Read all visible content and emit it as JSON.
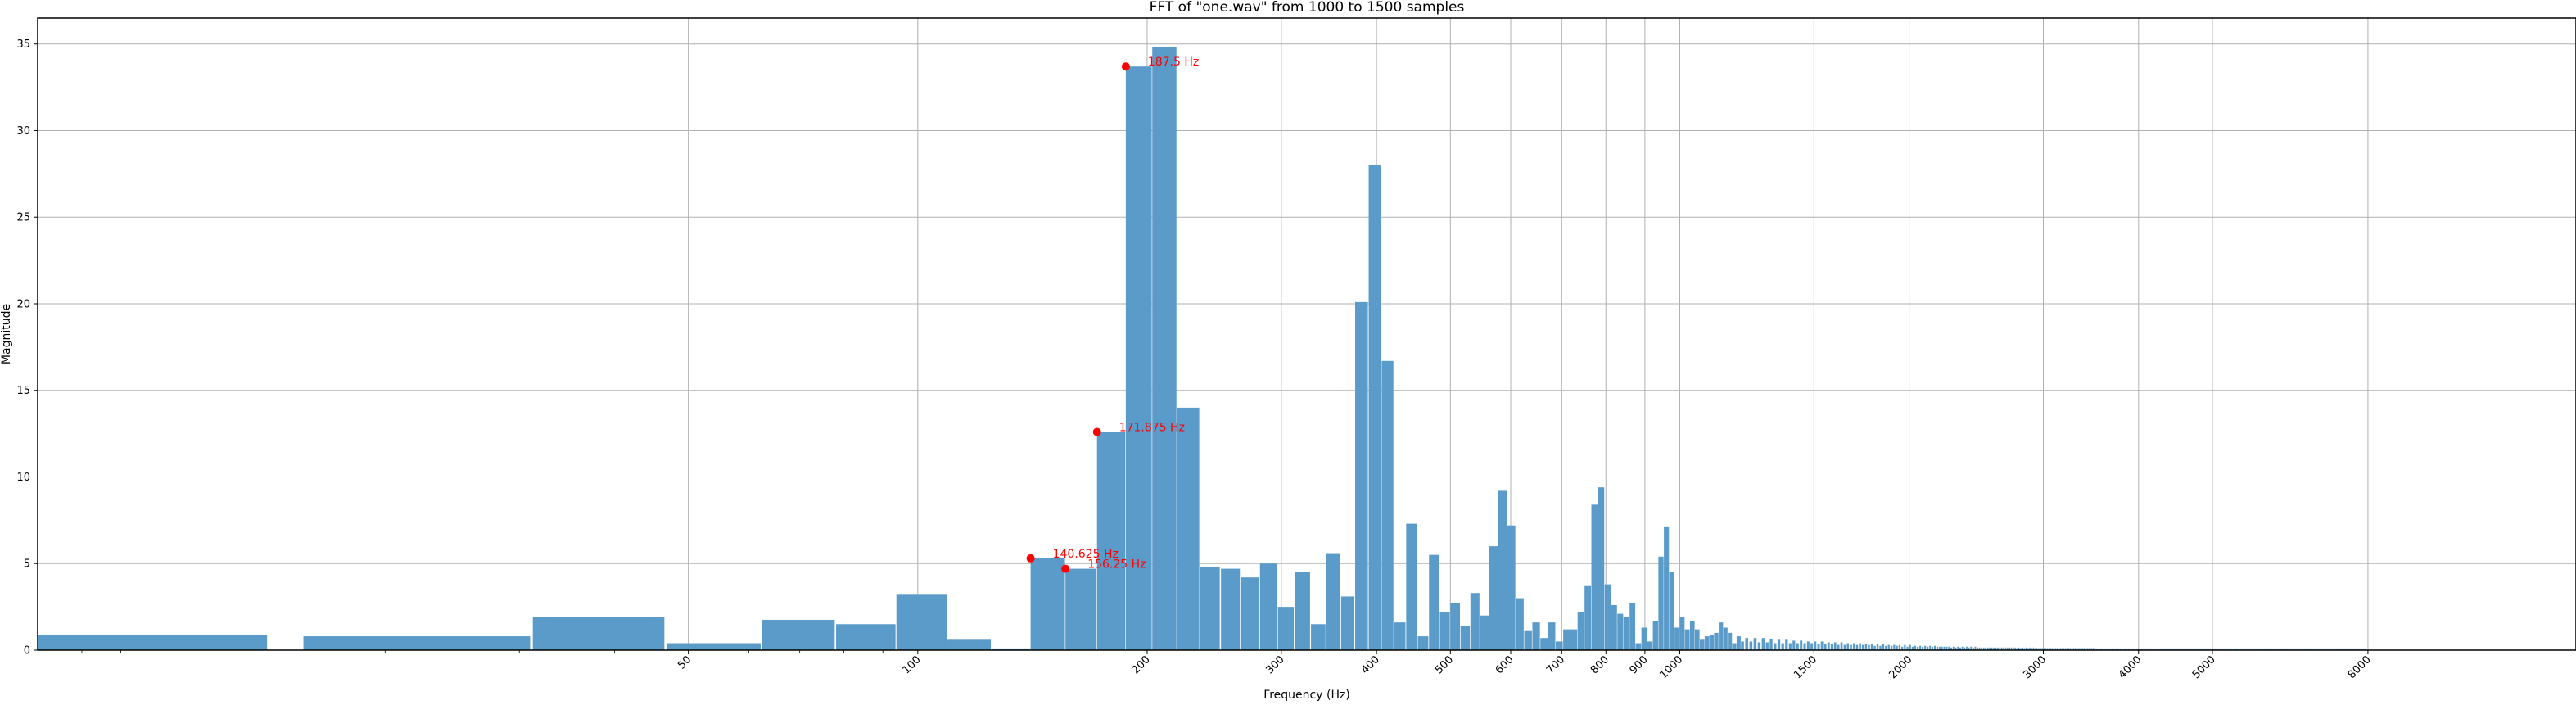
{
  "chart_data": {
    "type": "bar",
    "title": "FFT of \"one.wav\" from 1000 to 1500 samples",
    "xlabel": "Frequency (Hz)",
    "ylabel": "Magnitude",
    "x_scale": "log",
    "xlim": [
      7.0,
      15000
    ],
    "ylim": [
      0,
      36.5
    ],
    "grid": true,
    "bar_color": "#5b9bc9",
    "marker_color": "#ff0000",
    "y_ticks": [
      0,
      5,
      10,
      15,
      20,
      25,
      30,
      35
    ],
    "x_ticks": [
      50,
      100,
      200,
      300,
      400,
      500,
      600,
      700,
      800,
      900,
      1000,
      1500,
      2000,
      3000,
      4000,
      5000,
      8000
    ],
    "bar_width_hz": 15.625,
    "bars_manual": [
      {
        "x0": 7.0,
        "x1": 14.0,
        "y": 0.9
      },
      {
        "x0": 15.625,
        "x1": 31.0,
        "y": 0.8
      },
      {
        "x0": 31.25,
        "x1": 46.5,
        "y": 1.9
      },
      {
        "x0": 46.875,
        "x1": 62.2,
        "y": 0.4
      },
      {
        "x0": 62.5,
        "x1": 77.8,
        "y": 1.75
      },
      {
        "x0": 78.125,
        "x1": 93.5,
        "y": 1.5
      },
      {
        "x0": 93.75,
        "x1": 109.1,
        "y": 3.2
      },
      {
        "x0": 109.375,
        "x1": 124.7,
        "y": 0.6
      },
      {
        "x0": 125.0,
        "x1": 140.3,
        "y": 0.1
      },
      {
        "x0": 140.625,
        "x1": 156.0,
        "y": 5.3
      },
      {
        "x0": 156.25,
        "x1": 171.6,
        "y": 4.7
      },
      {
        "x0": 171.875,
        "x1": 187.2,
        "y": 12.6
      },
      {
        "x0": 187.5,
        "x1": 202.8,
        "y": 33.7
      },
      {
        "x0": 203.125,
        "x1": 218.5,
        "y": 34.8
      },
      {
        "x0": 218.75,
        "x1": 234.1,
        "y": 14.0
      }
    ],
    "bars_from_234_375": [
      4.8,
      4.7,
      4.2,
      5.0,
      2.5,
      4.5,
      1.5,
      5.6,
      3.1,
      20.1,
      28.0,
      16.7,
      1.6,
      7.3,
      0.8,
      5.5,
      2.2,
      2.7,
      1.4,
      3.3,
      2.0,
      6.0,
      9.2,
      7.2,
      3.0,
      1.1,
      1.6,
      0.7,
      1.6,
      0.5,
      1.2,
      1.2,
      2.2,
      3.7,
      8.4,
      9.4,
      3.8,
      2.6,
      2.1,
      1.9,
      2.7,
      0.4,
      1.3,
      0.5,
      1.7,
      5.4,
      7.1,
      4.5,
      1.3,
      1.9,
      1.2,
      1.7,
      1.2,
      0.6,
      0.8,
      0.9,
      1.0,
      1.6,
      1.3,
      1.0,
      0.4,
      0.8,
      0.5,
      0.7,
      0.5,
      0.7,
      0.45,
      0.7,
      0.45,
      0.65,
      0.4,
      0.6,
      0.4,
      0.6,
      0.4,
      0.55,
      0.4,
      0.55,
      0.4,
      0.5,
      0.4,
      0.5,
      0.35,
      0.5,
      0.35,
      0.45,
      0.35,
      0.45,
      0.3,
      0.45,
      0.3,
      0.4,
      0.3,
      0.4,
      0.3,
      0.4,
      0.3,
      0.35,
      0.3,
      0.35,
      0.25,
      0.35,
      0.25,
      0.35,
      0.25,
      0.3,
      0.25,
      0.3,
      0.25,
      0.3,
      0.2,
      0.3,
      0.2,
      0.3,
      0.2,
      0.25,
      0.2,
      0.25,
      0.2,
      0.25,
      0.2,
      0.25,
      0.2,
      0.25,
      0.2,
      0.2,
      0.2,
      0.2,
      0.2,
      0.2,
      0.15,
      0.2,
      0.15,
      0.2,
      0.15,
      0.2,
      0.15,
      0.2,
      0.15,
      0.2,
      0.15,
      0.2,
      0.15,
      0.15,
      0.15,
      0.15,
      0.15,
      0.15,
      0.15,
      0.15,
      0.15,
      0.15,
      0.15,
      0.15,
      0.15,
      0.15,
      0.15,
      0.15,
      0.15,
      0.15,
      0.15,
      0.15,
      0.12,
      0.15,
      0.12,
      0.15,
      0.12,
      0.15,
      0.12,
      0.15,
      0.12,
      0.15,
      0.12,
      0.12,
      0.12,
      0.12,
      0.12,
      0.12,
      0.12,
      0.12,
      0.12,
      0.12,
      0.12,
      0.12,
      0.12,
      0.12,
      0.12,
      0.12,
      0.12,
      0.12,
      0.12,
      0.12,
      0.12,
      0.12,
      0.12,
      0.12,
      0.12,
      0.12,
      0.12,
      0.12,
      0.12,
      0.12,
      0.12,
      0.12,
      0.12,
      0.12,
      0.12,
      0.12,
      0.12,
      0.12,
      0.1,
      0.1,
      0.1,
      0.1,
      0.1,
      0.1,
      0.1,
      0.1,
      0.1,
      0.1,
      0.1,
      0.1,
      0.1,
      0.1,
      0.1,
      0.1,
      0.1,
      0.1,
      0.1,
      0.1,
      0.1,
      0.1,
      0.1,
      0.1,
      0.1,
      0.1,
      0.1,
      0.1,
      0.1,
      0.1,
      0.1,
      0.1,
      0.1,
      0.1,
      0.1,
      0.1,
      0.1,
      0.1,
      0.1,
      0.1,
      0.1,
      0.1,
      0.1,
      0.1,
      0.1,
      0.1,
      0.1,
      0.1,
      0.1,
      0.1,
      0.1,
      0.1,
      0.1,
      0.1,
      0.1,
      0.1,
      0.1,
      0.1,
      0.1,
      0.1,
      0.1,
      0.1,
      0.1,
      0.1,
      0.1,
      0.1,
      0.1,
      0.1,
      0.1,
      0.1,
      0.1,
      0.1,
      0.1,
      0.1,
      0.1,
      0.1,
      0.1,
      0.1,
      0.1,
      0.1,
      0.1,
      0.1,
      0.1,
      0.1,
      0.1,
      0.1,
      0.1,
      0.1,
      0.1,
      0.1,
      0.1,
      0.1,
      0.1,
      0.1,
      0.1,
      0.1,
      0.1,
      0.1,
      0.1,
      0.1,
      0.1,
      0.1,
      0.1,
      0.1,
      0.1,
      0.1,
      0.1,
      0.1,
      0.1,
      0.1,
      0.1,
      0.1,
      0.1,
      0.1,
      0.1,
      0.1,
      0.1,
      0.1,
      0.1,
      0.1,
      0.1,
      0.1,
      0.1,
      0.1,
      0.1,
      0.1,
      0.1,
      0.1,
      0.1,
      0.1,
      0.1,
      0.1,
      0.1,
      0.1,
      0.1,
      0.1,
      0.1,
      0.1,
      0.1,
      0.1,
      0.1,
      0.1,
      0.1,
      0.1,
      0.1,
      0.1,
      0.1,
      0.1,
      0.1,
      0.1,
      0.1,
      0.1,
      0.1,
      0.1,
      0.1,
      0.1,
      0.1,
      0.1,
      0.1,
      0.1,
      0.1,
      0.1,
      0.1,
      0.1,
      0.1,
      0.1,
      0.1,
      0.1,
      0.1,
      0.1,
      0.1,
      0.1,
      0.1,
      0.1,
      0.1,
      0.1,
      0.1,
      0.1,
      0.1,
      0.1,
      0.1,
      0.1,
      0.1,
      0.1,
      0.1,
      0.1,
      0.1,
      0.1,
      0.1,
      0.1,
      0.1,
      0.1,
      0.1,
      0.1,
      0.1,
      0.1,
      0.1,
      0.1,
      0.1,
      0.1,
      0.1,
      0.1,
      0.1,
      0.1,
      0.1,
      0.1,
      0.1,
      0.1,
      0.1,
      0.1,
      0.1,
      0.1,
      0.1,
      0.1,
      0.1,
      0.1,
      0.1,
      0.1,
      0.1,
      0.1,
      0.1,
      0.1,
      0.1,
      0.1,
      0.1,
      0.1,
      0.1,
      0.1,
      0.1,
      0.1,
      0.1,
      0.1,
      0.1,
      0.1,
      0.1,
      0.1,
      0.1,
      0.1,
      0.1,
      0.1,
      0.1,
      0.1,
      0.1,
      0.1,
      0.1,
      0.1,
      0.1,
      0.1,
      0.1,
      0.1,
      0.1,
      0.1,
      0.1,
      0.1,
      0.1,
      0.1,
      0.1,
      0.1,
      0.1,
      0.1,
      0.1,
      0.1,
      0.1,
      0.1,
      0.1,
      0.1,
      0.1,
      0.1,
      0.1,
      0.1,
      0.1,
      0.1,
      0.1,
      0.1,
      0.1,
      0.1,
      0.1,
      0.1,
      0.1,
      0.1,
      0.1,
      0.1,
      0.1,
      0.1,
      0.1
    ],
    "peaks": [
      {
        "x": 140.625,
        "y": 5.3,
        "label": "140.625 Hz"
      },
      {
        "x": 156.25,
        "y": 4.7,
        "label": "156.25 Hz"
      },
      {
        "x": 171.875,
        "y": 12.6,
        "label": "171.875 Hz"
      },
      {
        "x": 187.5,
        "y": 33.7,
        "label": "187.5 Hz"
      }
    ]
  }
}
